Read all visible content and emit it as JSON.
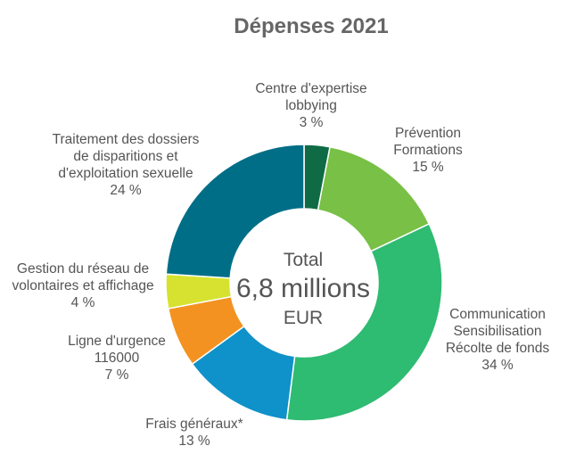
{
  "chart_data": {
    "type": "pie",
    "variant": "donut",
    "title": "Dépenses 2021",
    "center": {
      "line1": "Total",
      "line2": "6,8 millions",
      "line3": "EUR"
    },
    "slices": [
      {
        "id": "lobbying",
        "label_lines": [
          "Centre d'expertise",
          "lobbying"
        ],
        "value": 3,
        "value_label": "3 %",
        "color": "#0f6b45"
      },
      {
        "id": "prevention",
        "label_lines": [
          "Prévention",
          "Formations"
        ],
        "value": 15,
        "value_label": "15 %",
        "color": "#78c046"
      },
      {
        "id": "communication",
        "label_lines": [
          "Communication",
          "Sensibilisation",
          "Récolte de fonds"
        ],
        "value": 34,
        "value_label": "34 %",
        "color": "#2ebb72"
      },
      {
        "id": "frais",
        "label_lines": [
          "Frais généraux*"
        ],
        "value": 13,
        "value_label": "13 %",
        "color": "#0f91c9"
      },
      {
        "id": "ligne",
        "label_lines": [
          "Ligne d'urgence",
          "116000"
        ],
        "value": 7,
        "value_label": "7 %",
        "color": "#f39220"
      },
      {
        "id": "gestion",
        "label_lines": [
          "Gestion du réseau de",
          "volontaires et affichage"
        ],
        "value": 4,
        "value_label": "4 %",
        "color": "#d6e22f"
      },
      {
        "id": "traitement",
        "label_lines": [
          "Traitement des dossiers",
          "de disparitions et",
          "d'exploitation sexuelle"
        ],
        "value": 24,
        "value_label": "24 %",
        "color": "#006e87"
      }
    ],
    "legend": "none"
  }
}
